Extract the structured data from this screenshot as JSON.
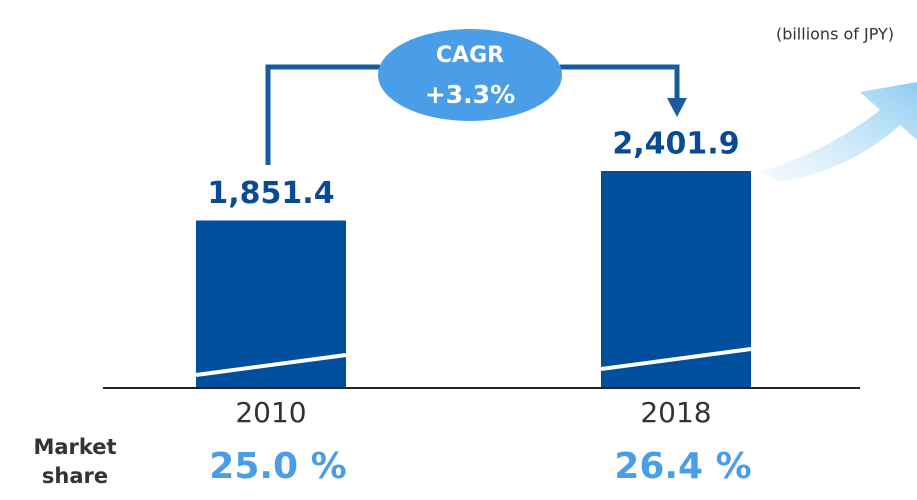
{
  "chart_data": {
    "type": "bar",
    "unit_note": "(billions of JPY)",
    "categories": [
      "2010",
      "2018"
    ],
    "values": [
      1851.4,
      2401.9
    ],
    "value_labels": [
      "1,851.4",
      "2,401.9"
    ],
    "color": "#004f9c",
    "cagr": {
      "label": "CAGR",
      "value": 3.3,
      "value_label": "+3.3%"
    },
    "market_share": {
      "label": "Market share",
      "values": [
        25.0,
        26.4
      ],
      "value_labels": [
        "25.0 %",
        "26.4 %"
      ]
    }
  }
}
